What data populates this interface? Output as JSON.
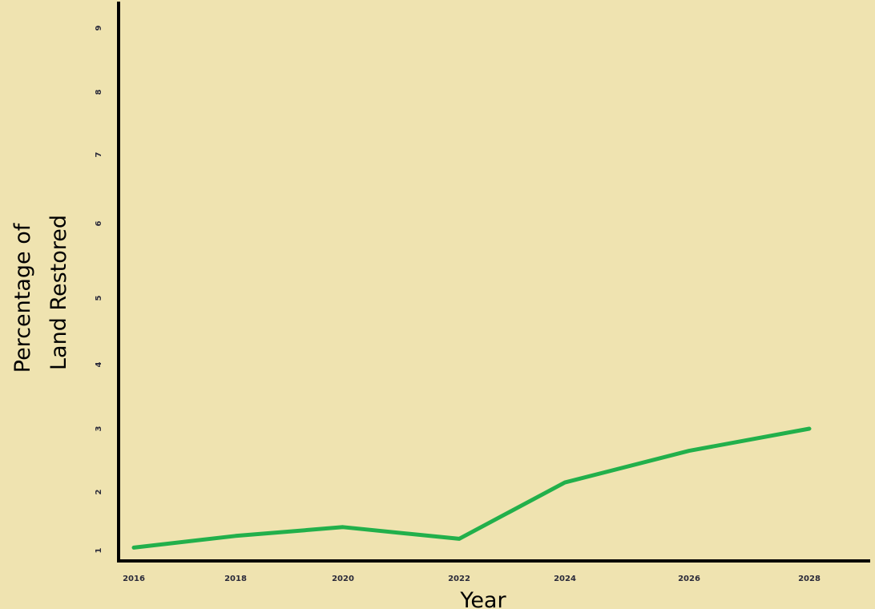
{
  "chart_data": {
    "type": "line",
    "xlabel": "Year",
    "ylabel_lines": [
      "Percentage of",
      "Land Restored"
    ],
    "x_ticks": [
      "2016",
      "2018",
      "2020",
      "2022",
      "2024",
      "2026",
      "2028"
    ],
    "y_ticks": [
      "1",
      "2",
      "3",
      "4",
      "5",
      "6",
      "7",
      "8",
      "9"
    ],
    "xlim": [
      2016,
      2028
    ],
    "ylim": [
      1,
      9
    ],
    "grid": false,
    "series": [
      {
        "color": "#22b04b",
        "points": [
          {
            "x": 2016,
            "y": 1.05
          },
          {
            "x": 2018,
            "y": 1.25
          },
          {
            "x": 2020,
            "y": 1.4
          },
          {
            "x": 2022,
            "y": 1.2
          },
          {
            "x": 2024,
            "y": 2.15
          },
          {
            "x": 2026,
            "y": 2.65
          },
          {
            "x": 2028,
            "y": 3.0
          }
        ]
      }
    ]
  }
}
